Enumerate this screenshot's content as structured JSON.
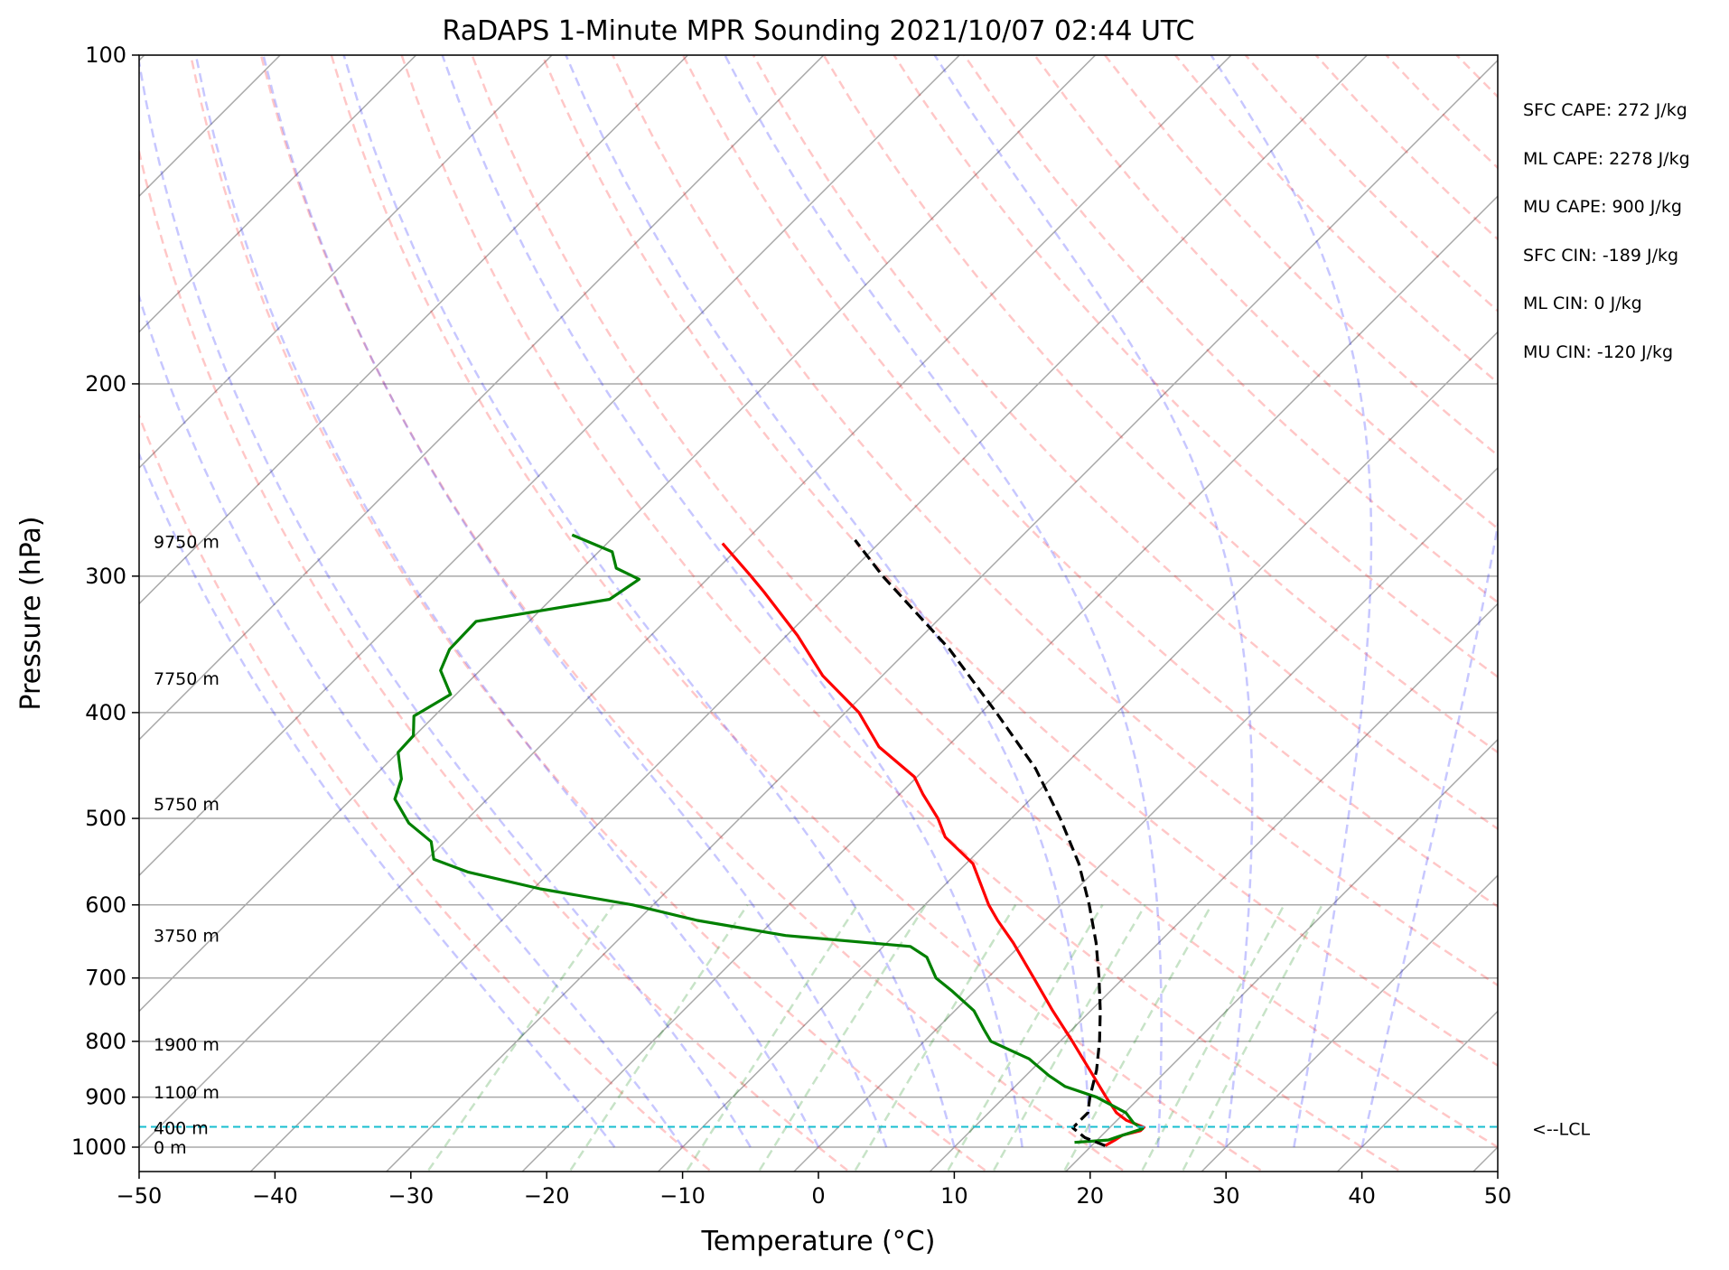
{
  "chart_data": {
    "type": "skew-t sounding",
    "title": "RaDAPS 1-Minute MPR Sounding 2021/10/07 02:44 UTC",
    "xlabel": "Temperature (°C)",
    "ylabel": "Pressure (hPa)",
    "xlim": [
      -50,
      50
    ],
    "ylim": [
      1050,
      100
    ],
    "yscale": "log",
    "x_ticks": [
      "−50",
      "−40",
      "−30",
      "−20",
      "−10",
      "0",
      "10",
      "20",
      "30",
      "40",
      "50"
    ],
    "y_ticks": [
      {
        "p": 100,
        "label": "100"
      },
      {
        "p": 200,
        "label": "200"
      },
      {
        "p": 300,
        "label": "300"
      },
      {
        "p": 400,
        "label": "400"
      },
      {
        "p": 500,
        "label": "500"
      },
      {
        "p": 600,
        "label": "600"
      },
      {
        "p": 700,
        "label": "700"
      },
      {
        "p": 800,
        "label": "800"
      },
      {
        "p": 900,
        "label": "900"
      },
      {
        "p": 1000,
        "label": "1000"
      }
    ],
    "grid": true,
    "height_labels": [
      {
        "p": 1000,
        "text": "0 m"
      },
      {
        "p": 960,
        "text": "400 m"
      },
      {
        "p": 890,
        "text": "1100 m"
      },
      {
        "p": 805,
        "text": "1900 m"
      },
      {
        "p": 640,
        "text": "3750 m"
      },
      {
        "p": 485,
        "text": "5750 m"
      },
      {
        "p": 372,
        "text": "7750 m"
      },
      {
        "p": 279,
        "text": "9750 m"
      }
    ],
    "lcl": {
      "p": 958,
      "label": "<--LCL"
    },
    "stats": [
      "SFC CAPE: 272 J/kg",
      "ML CAPE: 2278 J/kg",
      "MU CAPE: 900 J/kg",
      "SFC CIN: -189 J/kg",
      "ML CIN: 0 J/kg",
      "MU CIN: -120 J/kg"
    ],
    "series": [
      {
        "color": "#ff0000",
        "points": [
          {
            "p": 997,
            "t": 21.0
          },
          {
            "p": 985,
            "t": 21.3
          },
          {
            "p": 975,
            "t": 21.5
          },
          {
            "p": 966,
            "t": 22.5
          },
          {
            "p": 959,
            "t": 22.5
          },
          {
            "p": 945,
            "t": 20.7
          },
          {
            "p": 930,
            "t": 19.4
          },
          {
            "p": 900,
            "t": 17.5
          },
          {
            "p": 850,
            "t": 14.3
          },
          {
            "p": 800,
            "t": 10.9
          },
          {
            "p": 750,
            "t": 7.2
          },
          {
            "p": 700,
            "t": 3.4
          },
          {
            "p": 650,
            "t": -0.7
          },
          {
            "p": 620,
            "t": -3.5
          },
          {
            "p": 600,
            "t": -5.3
          },
          {
            "p": 550,
            "t": -9.5
          },
          {
            "p": 520,
            "t": -13.5
          },
          {
            "p": 500,
            "t": -15.4
          },
          {
            "p": 475,
            "t": -18.3
          },
          {
            "p": 458,
            "t": -20.2
          },
          {
            "p": 430,
            "t": -25.0
          },
          {
            "p": 400,
            "t": -29.0
          },
          {
            "p": 370,
            "t": -34.4
          },
          {
            "p": 340,
            "t": -39.2
          },
          {
            "p": 310,
            "t": -44.9
          },
          {
            "p": 300,
            "t": -47.0
          },
          {
            "p": 280,
            "t": -51.5
          }
        ]
      },
      {
        "color": "#008000",
        "points": [
          {
            "p": 990,
            "t": 18.5
          },
          {
            "p": 985,
            "t": 20.8
          },
          {
            "p": 978,
            "t": 21.3
          },
          {
            "p": 962,
            "t": 22.5
          },
          {
            "p": 950,
            "t": 21.4
          },
          {
            "p": 930,
            "t": 20.1
          },
          {
            "p": 900,
            "t": 16.8
          },
          {
            "p": 880,
            "t": 13.7
          },
          {
            "p": 860,
            "t": 11.7
          },
          {
            "p": 830,
            "t": 9.0
          },
          {
            "p": 800,
            "t": 4.9
          },
          {
            "p": 780,
            "t": 3.5
          },
          {
            "p": 750,
            "t": 1.4
          },
          {
            "p": 720,
            "t": -1.6
          },
          {
            "p": 700,
            "t": -3.8
          },
          {
            "p": 670,
            "t": -6.0
          },
          {
            "p": 655,
            "t": -8.0
          },
          {
            "p": 640,
            "t": -18.0
          },
          {
            "p": 620,
            "t": -25.6
          },
          {
            "p": 600,
            "t": -31.5
          },
          {
            "p": 580,
            "t": -39.5
          },
          {
            "p": 560,
            "t": -46.0
          },
          {
            "p": 545,
            "t": -49.5
          },
          {
            "p": 525,
            "t": -51.0
          },
          {
            "p": 505,
            "t": -54.0
          },
          {
            "p": 480,
            "t": -56.8
          },
          {
            "p": 460,
            "t": -57.8
          },
          {
            "p": 435,
            "t": -60.0
          },
          {
            "p": 420,
            "t": -60.1
          },
          {
            "p": 403,
            "t": -61.5
          },
          {
            "p": 385,
            "t": -60.4
          },
          {
            "p": 366,
            "t": -62.9
          },
          {
            "p": 350,
            "t": -63.8
          },
          {
            "p": 330,
            "t": -63.9
          },
          {
            "p": 315,
            "t": -55.7
          },
          {
            "p": 302,
            "t": -55.0
          },
          {
            "p": 295,
            "t": -57.5
          },
          {
            "p": 285,
            "t": -59.0
          },
          {
            "p": 275,
            "t": -63.2
          }
        ]
      },
      {
        "color": "#000000",
        "style": "dashed",
        "points": [
          {
            "p": 997,
            "t": 21.0
          },
          {
            "p": 980,
            "t": 18.9
          },
          {
            "p": 960,
            "t": 17.3
          },
          {
            "p": 930,
            "t": 17.3
          },
          {
            "p": 900,
            "t": 16.3
          },
          {
            "p": 850,
            "t": 14.8
          },
          {
            "p": 800,
            "t": 12.9
          },
          {
            "p": 750,
            "t": 10.7
          },
          {
            "p": 700,
            "t": 8.2
          },
          {
            "p": 650,
            "t": 5.4
          },
          {
            "p": 600,
            "t": 2.1
          },
          {
            "p": 550,
            "t": -1.7
          },
          {
            "p": 500,
            "t": -6.4
          },
          {
            "p": 450,
            "t": -11.9
          },
          {
            "p": 400,
            "t": -18.9
          },
          {
            "p": 350,
            "t": -27.0
          },
          {
            "p": 300,
            "t": -37.3
          },
          {
            "p": 278,
            "t": -42.0
          }
        ]
      }
    ]
  }
}
